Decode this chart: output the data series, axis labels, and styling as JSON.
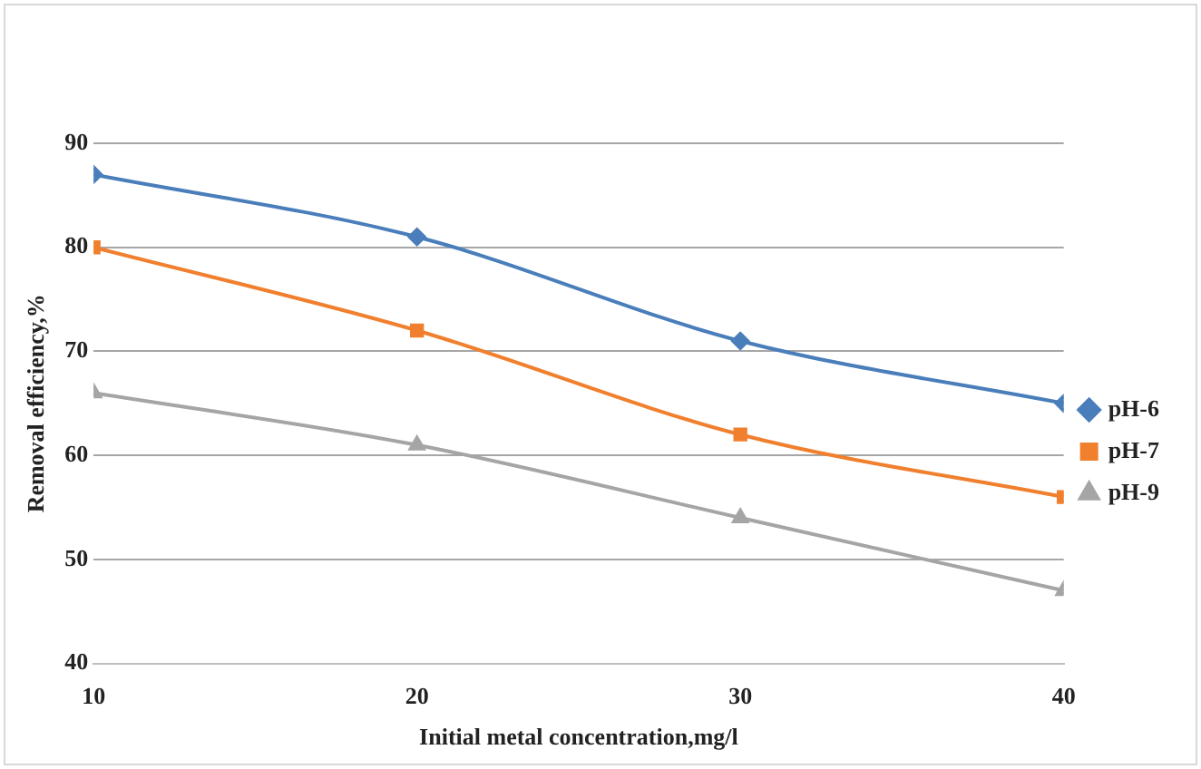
{
  "chart_data": {
    "type": "line",
    "xlabel": "Initial metal concentration,mg/l",
    "ylabel": "Removal efficiency,%",
    "x": [
      10,
      20,
      30,
      40
    ],
    "xlim": [
      10,
      40
    ],
    "xticks": [
      10,
      20,
      30,
      40
    ],
    "ylim": [
      40,
      90
    ],
    "yticks": [
      40,
      50,
      60,
      70,
      80,
      90
    ],
    "grid": "y",
    "legend": "right",
    "line_style": "solid",
    "series": [
      {
        "name": "pH-6",
        "color": "#4a7ebb",
        "marker": "diamond",
        "values": [
          87,
          81,
          71,
          65
        ]
      },
      {
        "name": "pH-7",
        "color": "#f07f2e",
        "marker": "square",
        "values": [
          80,
          72,
          62,
          56
        ]
      },
      {
        "name": "pH-9",
        "color": "#a5a5a5",
        "marker": "triangle",
        "values": [
          66,
          61,
          54,
          47
        ]
      }
    ]
  }
}
